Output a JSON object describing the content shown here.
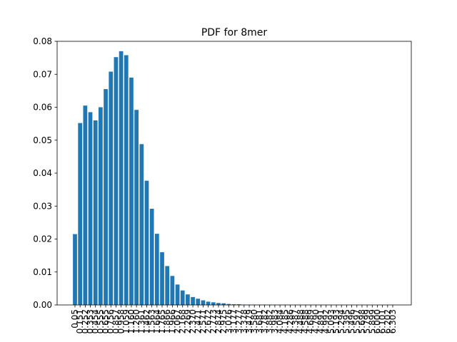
{
  "chart_data": {
    "type": "bar",
    "title": "PDF for 8mer",
    "xlabel": "",
    "ylabel": "",
    "color": "#1f77b4",
    "ylim": [
      0,
      0.08
    ],
    "yticks": [
      "0.00",
      "0.01",
      "0.02",
      "0.03",
      "0.04",
      "0.05",
      "0.06",
      "0.07",
      "0.08"
    ],
    "categories": [
      "0.05",
      "0.151",
      "0.252",
      "0.353",
      "0.454",
      "0.555",
      "0.655",
      "0.756",
      "0.857",
      "0.958",
      "1.059",
      "1.160",
      "1.260",
      "1.361",
      "1.462",
      "1.563",
      "1.664",
      "1.765",
      "1.866",
      "1.966",
      "2.067",
      "2.168",
      "2.269",
      "2.370",
      "2.471",
      "2.571",
      "2.672",
      "2.773",
      "2.874",
      "2.975",
      "3.076",
      "3.177",
      "3.277",
      "3.378",
      "3.479",
      "3.580",
      "3.681",
      "3.782",
      "3.882",
      "3.983",
      "4.084",
      "4.185",
      "4.286",
      "4.387",
      "4.488",
      "4.588",
      "4.689",
      "4.790",
      "4.891",
      "4.992",
      "5.093",
      "5.193",
      "5.294",
      "5.395",
      "5.496",
      "5.597",
      "5.698",
      "5.799",
      "5.899",
      "6.000",
      "6.101",
      "6.202",
      "6.303"
    ],
    "values": [
      0.0215,
      0.0552,
      0.0605,
      0.0585,
      0.056,
      0.06,
      0.0655,
      0.0708,
      0.0752,
      0.077,
      0.0758,
      0.069,
      0.0592,
      0.0488,
      0.0377,
      0.0292,
      0.0216,
      0.016,
      0.0118,
      0.0088,
      0.0062,
      0.0044,
      0.0032,
      0.0024,
      0.0019,
      0.0014,
      0.001,
      0.0008,
      0.0006,
      0.0005,
      0.0003,
      0.0002,
      0.0002,
      0.0001,
      0.0001,
      0.0001,
      0.0001,
      0.0001,
      0.0001,
      5e-05,
      5e-05,
      5e-05,
      3e-05,
      3e-05,
      3e-05,
      2e-05,
      2e-05,
      2e-05,
      2e-05,
      1e-05,
      1e-05,
      1e-05,
      1e-05,
      1e-05,
      1e-05,
      1e-05,
      1e-05,
      1e-05,
      1e-05,
      1e-05,
      1e-05,
      1e-05,
      1e-05
    ],
    "grid": false,
    "legend": "none"
  }
}
